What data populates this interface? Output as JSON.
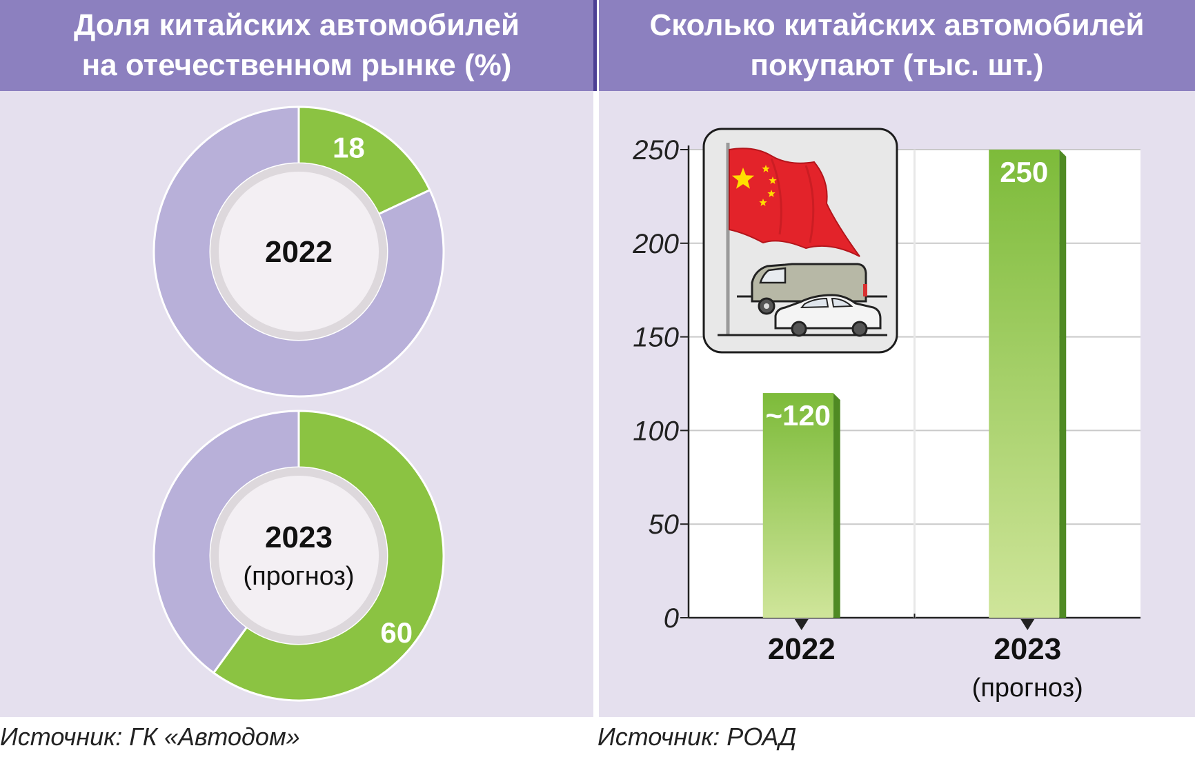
{
  "left": {
    "title_line1": "Доля китайских автомобилей",
    "title_line2": "на отечественном рынке (%)",
    "source": "Источник: ГК «Автодом»"
  },
  "right": {
    "title_line1": "Сколько китайских автомобилей",
    "title_line2": "покупают (тыс. шт.)",
    "source": "Источник: РОАД"
  },
  "colors": {
    "green": "#8bc342",
    "lavender": "#b8b0d9",
    "header": "#8c80bf",
    "panel": "#e5e0ee"
  },
  "illustration": {
    "icons": [
      "china-flag-icon",
      "van-icon",
      "car-icon"
    ]
  },
  "chart_data": [
    {
      "type": "pie",
      "variant": "donut",
      "center_label": "2022",
      "center_sublabel": "",
      "slices": [
        {
          "value": 18,
          "label": "18",
          "color": "#8bc342"
        },
        {
          "value": 82,
          "label": "",
          "color": "#b8b0d9"
        }
      ]
    },
    {
      "type": "pie",
      "variant": "donut",
      "center_label": "2023",
      "center_sublabel": "(прогноз)",
      "slices": [
        {
          "value": 60,
          "label": "60",
          "color": "#8bc342"
        },
        {
          "value": 40,
          "label": "",
          "color": "#b8b0d9"
        }
      ]
    },
    {
      "type": "bar",
      "categories": [
        "2022",
        "2023"
      ],
      "category_sublabels": [
        "",
        "(прогноз)"
      ],
      "values": [
        120,
        250
      ],
      "value_labels": [
        "~120",
        "250"
      ],
      "ylim": [
        0,
        250
      ],
      "yticks": [
        0,
        50,
        100,
        150,
        200,
        250
      ],
      "grid": true,
      "xlabel": "",
      "ylabel": ""
    }
  ]
}
